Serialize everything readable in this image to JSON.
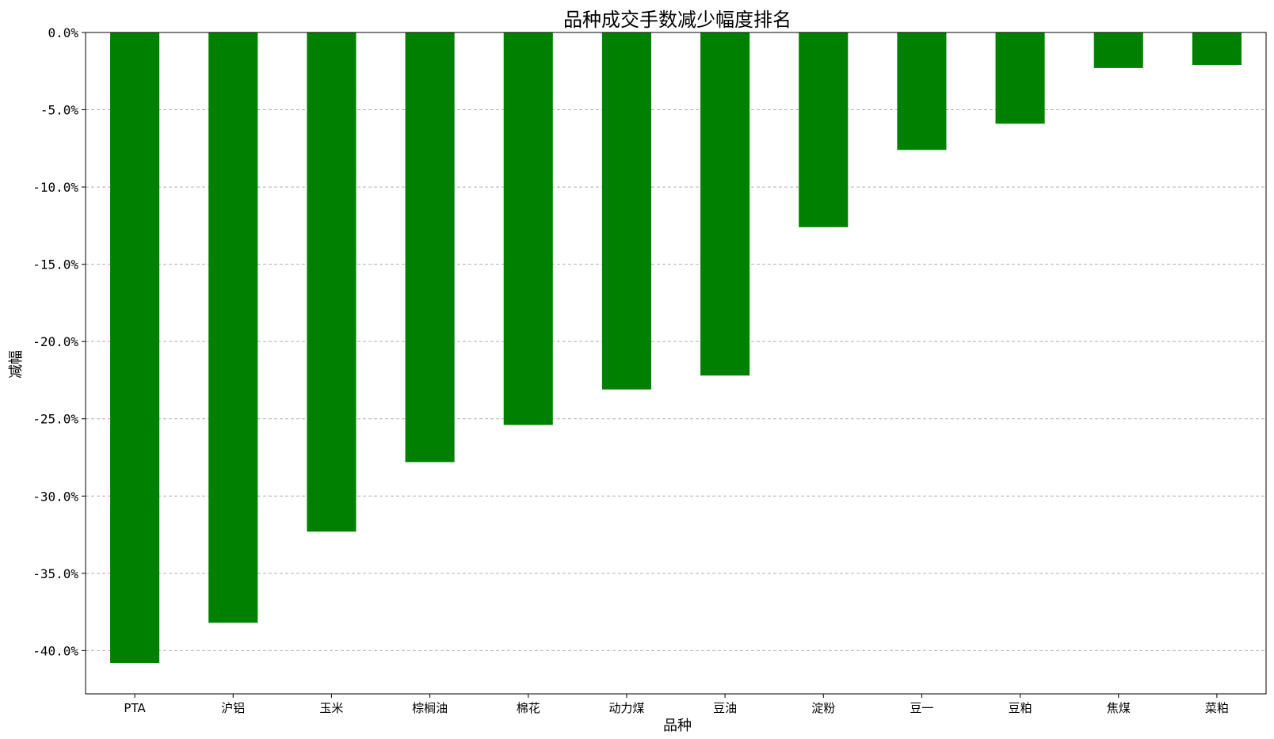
{
  "chart_data": {
    "type": "bar",
    "title": "品种成交手数减少幅度排名",
    "xlabel": "品种",
    "ylabel": "减幅",
    "categories": [
      "PTA",
      "沪铝",
      "玉米",
      "棕榈油",
      "棉花",
      "动力煤",
      "豆油",
      "淀粉",
      "豆一",
      "豆粕",
      "焦煤",
      "菜粕"
    ],
    "values": [
      -40.8,
      -38.2,
      -32.3,
      -27.8,
      -25.4,
      -23.1,
      -22.2,
      -12.6,
      -7.6,
      -5.9,
      -2.3,
      -2.1
    ],
    "ylim": [
      -42.8,
      0
    ],
    "yticks": [
      0,
      -5,
      -10,
      -15,
      -20,
      -25,
      -30,
      -35,
      -40
    ],
    "ytick_labels": [
      "0.0%",
      "-5.0%",
      "-10.0%",
      "-15.0%",
      "-20.0%",
      "-25.0%",
      "-30.0%",
      "-35.0%",
      "-40.0%"
    ],
    "grid": "y-dashed",
    "bar_color": "#008000"
  }
}
